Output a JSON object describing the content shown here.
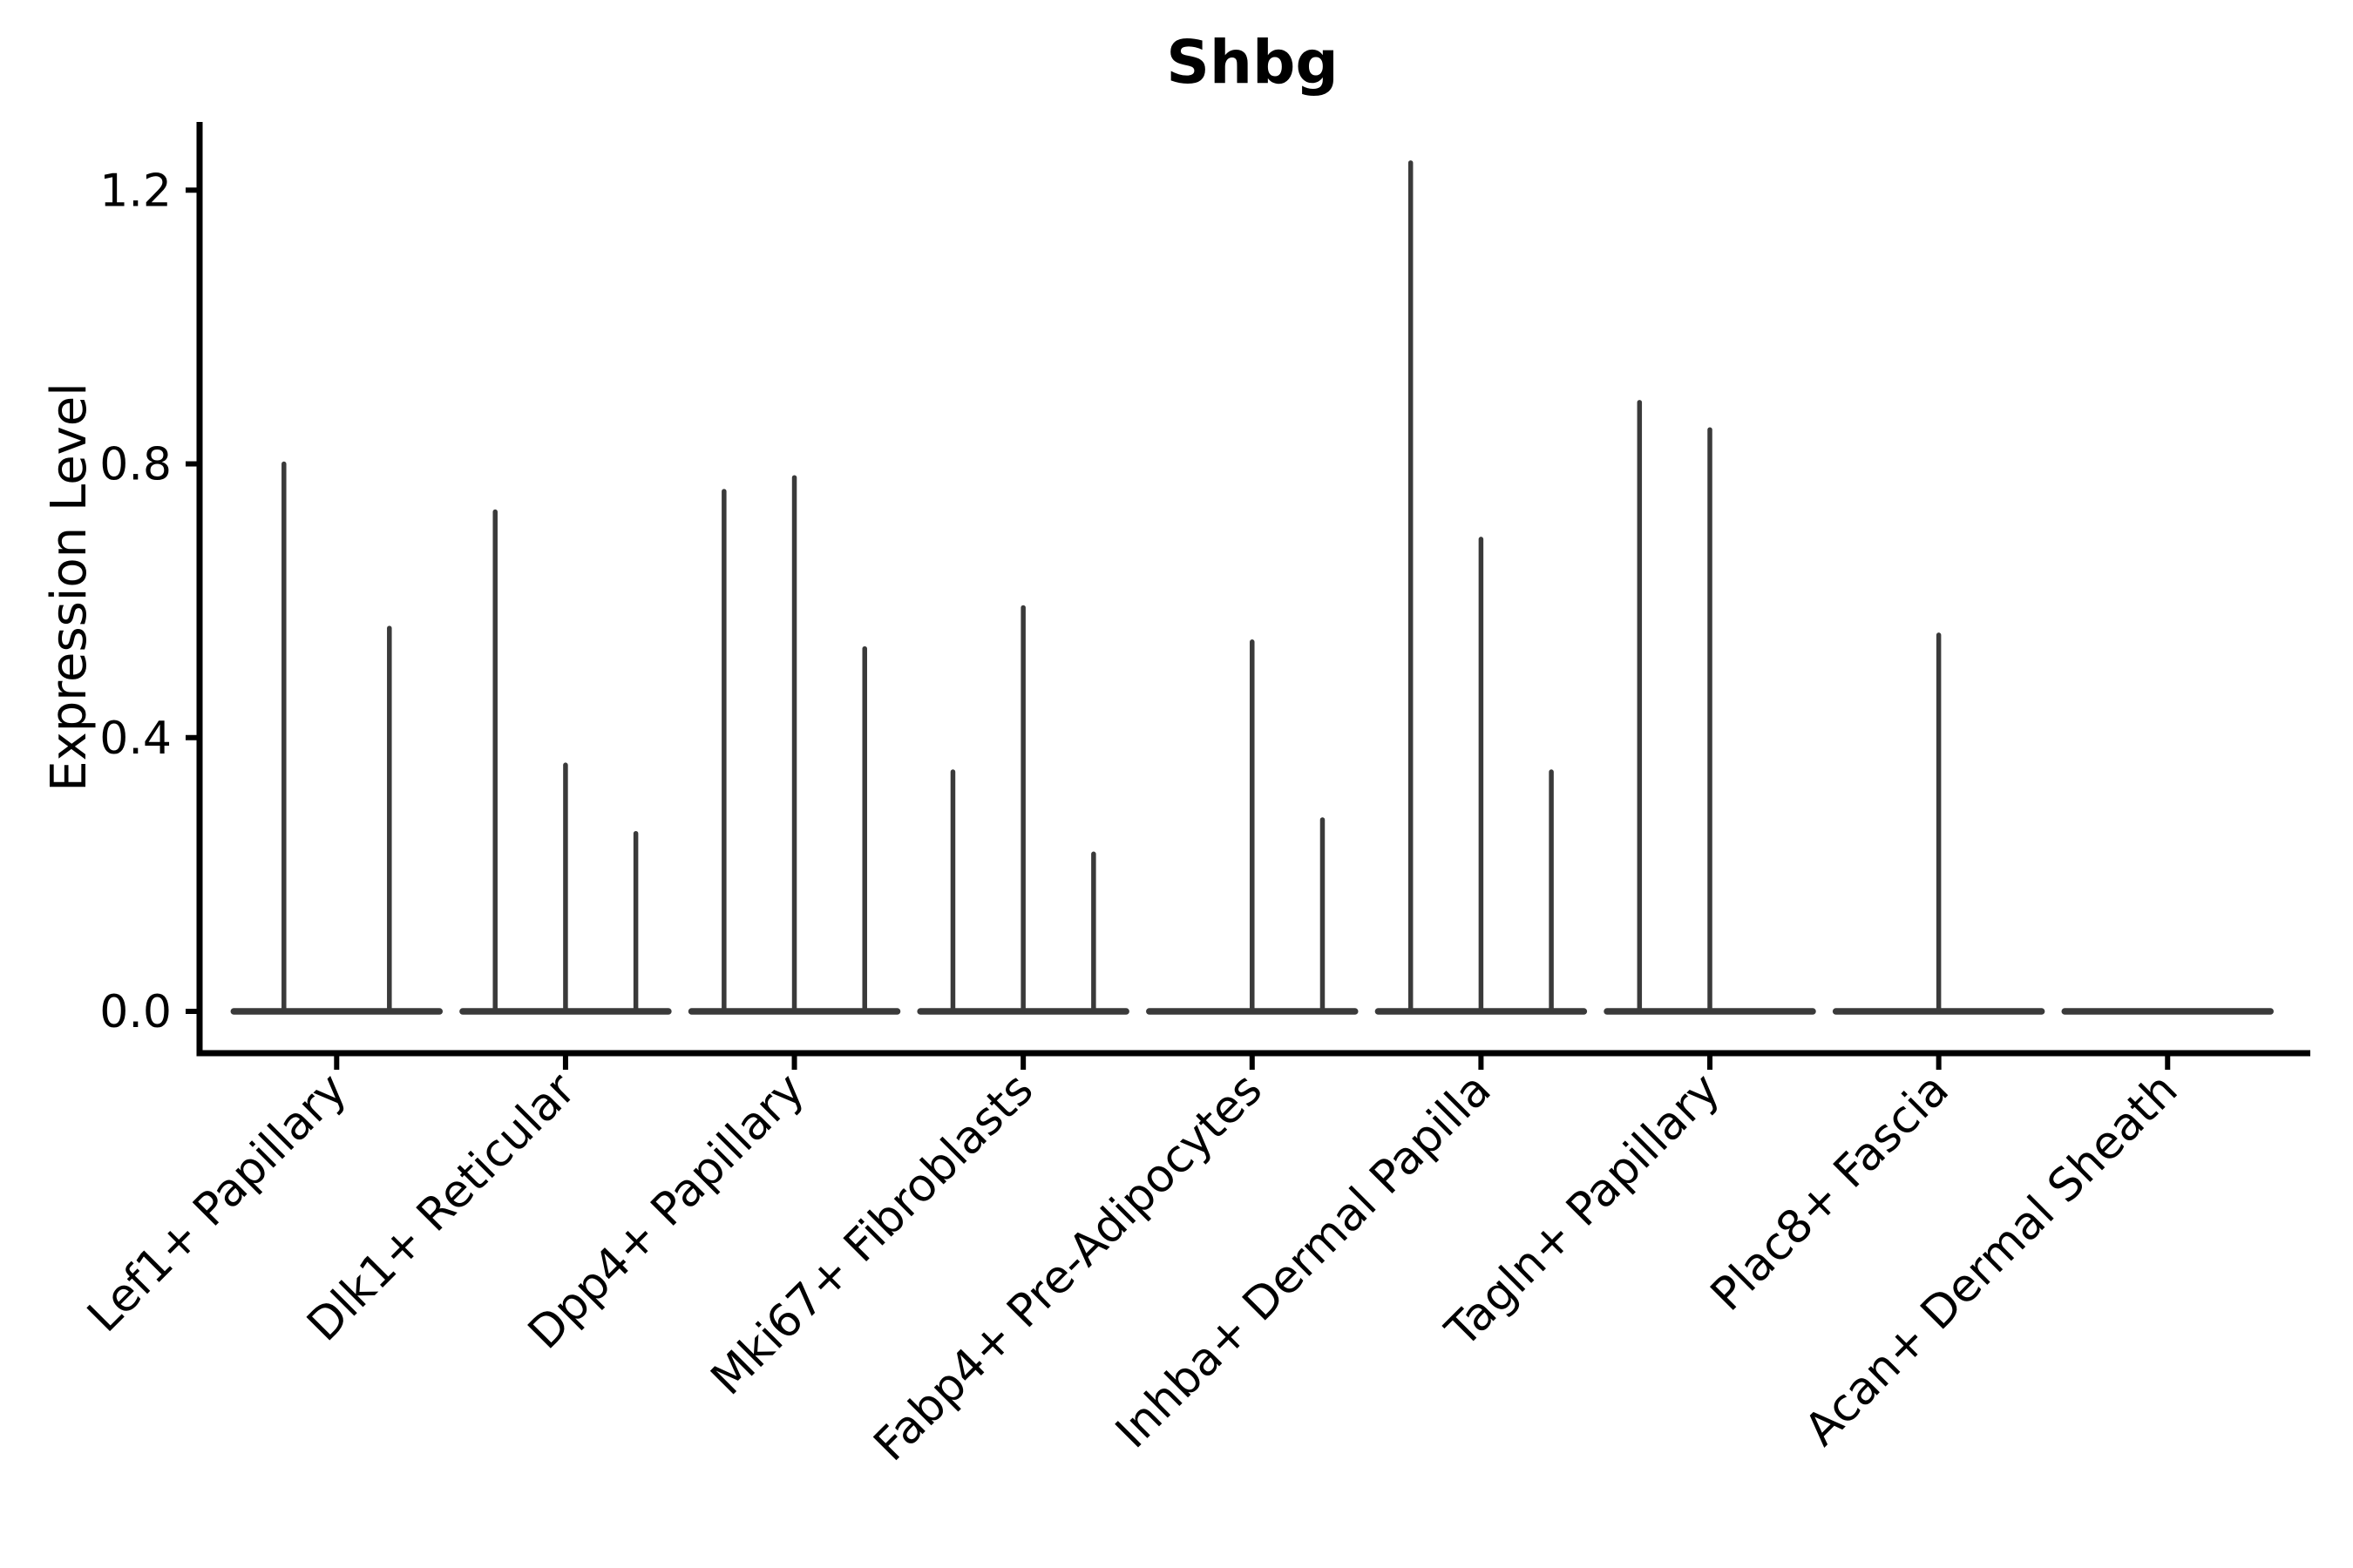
{
  "title": "Shbg",
  "chart_data": {
    "type": "violin",
    "title": "Shbg",
    "subtitle": "",
    "xlabel": "",
    "ylabel": "Expression Level",
    "ylim": [
      -0.06,
      1.3
    ],
    "yticks": [
      0.0,
      0.4,
      0.8,
      1.2
    ],
    "ytick_labels": [
      "0.0",
      "0.4",
      "0.8",
      "1.2"
    ],
    "xtick_label_rotation": 45,
    "grid": false,
    "legend": "none",
    "background_color": "#ffffff",
    "axis_color": "#000000",
    "violin_color": "#3a3a3a",
    "categories": [
      "Lef1+ Papillary",
      "Dlk1+ Reticular",
      "Dpp4+ Papillary",
      "Mki67+ Fibroblasts",
      "Fabp4+ Pre-Adipocytes",
      "Inhba+ Dermal Papilla",
      "Tagln+ Papillary",
      "Plac8+ Fascia",
      "Acan+ Dermal Sheath"
    ],
    "groups": [
      {
        "category": "Lef1+ Papillary",
        "violin_max_expression": [
          0.8,
          0.56
        ]
      },
      {
        "category": "Dlk1+ Reticular",
        "violin_max_expression": [
          0.73,
          0.36,
          0.26
        ]
      },
      {
        "category": "Dpp4+ Papillary",
        "violin_max_expression": [
          0.76,
          0.78,
          0.53
        ]
      },
      {
        "category": "Mki67+ Fibroblasts",
        "violin_max_expression": [
          0.35,
          0.59,
          0.23
        ]
      },
      {
        "category": "Fabp4+ Pre-Adipocytes",
        "violin_max_expression": [
          0.0,
          0.54,
          0.28
        ]
      },
      {
        "category": "Inhba+ Dermal Papilla",
        "violin_max_expression": [
          1.24,
          0.69,
          0.35
        ]
      },
      {
        "category": "Tagln+ Papillary",
        "violin_max_expression": [
          0.89,
          0.85,
          0.0
        ]
      },
      {
        "category": "Plac8+ Fascia",
        "violin_max_expression": [
          0.0,
          0.55,
          0.0
        ]
      },
      {
        "category": "Acan+ Dermal Sheath",
        "violin_max_expression": [
          0.0,
          0.0,
          0.0
        ]
      }
    ]
  }
}
